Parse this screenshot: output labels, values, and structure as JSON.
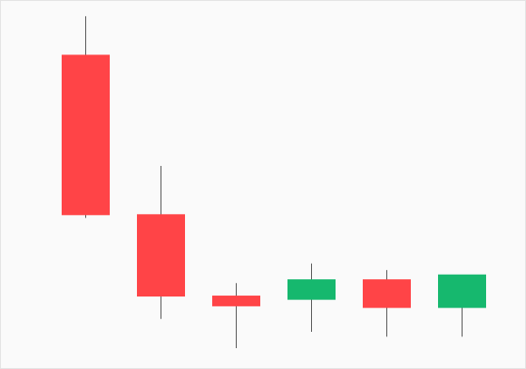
{
  "chart_data": {
    "type": "candlestick",
    "title": "",
    "xlabel": "",
    "ylabel": "",
    "ylim": [
      0,
      100
    ],
    "grid": false,
    "legend": "none",
    "candles": [
      {
        "open": 90.0,
        "high": 102.0,
        "low": 40.0,
        "close": 41.0
      },
      {
        "open": 41.0,
        "high": 56.0,
        "low": 9.0,
        "close": 16.0
      },
      {
        "open": 16.0,
        "high": 20.0,
        "low": 0.0,
        "close": 13.0
      },
      {
        "open": 15.0,
        "high": 26.0,
        "low": 5.0,
        "close": 21.0
      },
      {
        "open": 21.0,
        "high": 24.0,
        "low": 3.5,
        "close": 12.5
      },
      {
        "open": 12.5,
        "high": 22.5,
        "low": 3.5,
        "close": 22.5
      }
    ],
    "colors": {
      "up": "#16b86e",
      "down": "#ff4447",
      "wick": "#555555",
      "background": "#fafafa",
      "border": "#e3e3e3"
    }
  }
}
